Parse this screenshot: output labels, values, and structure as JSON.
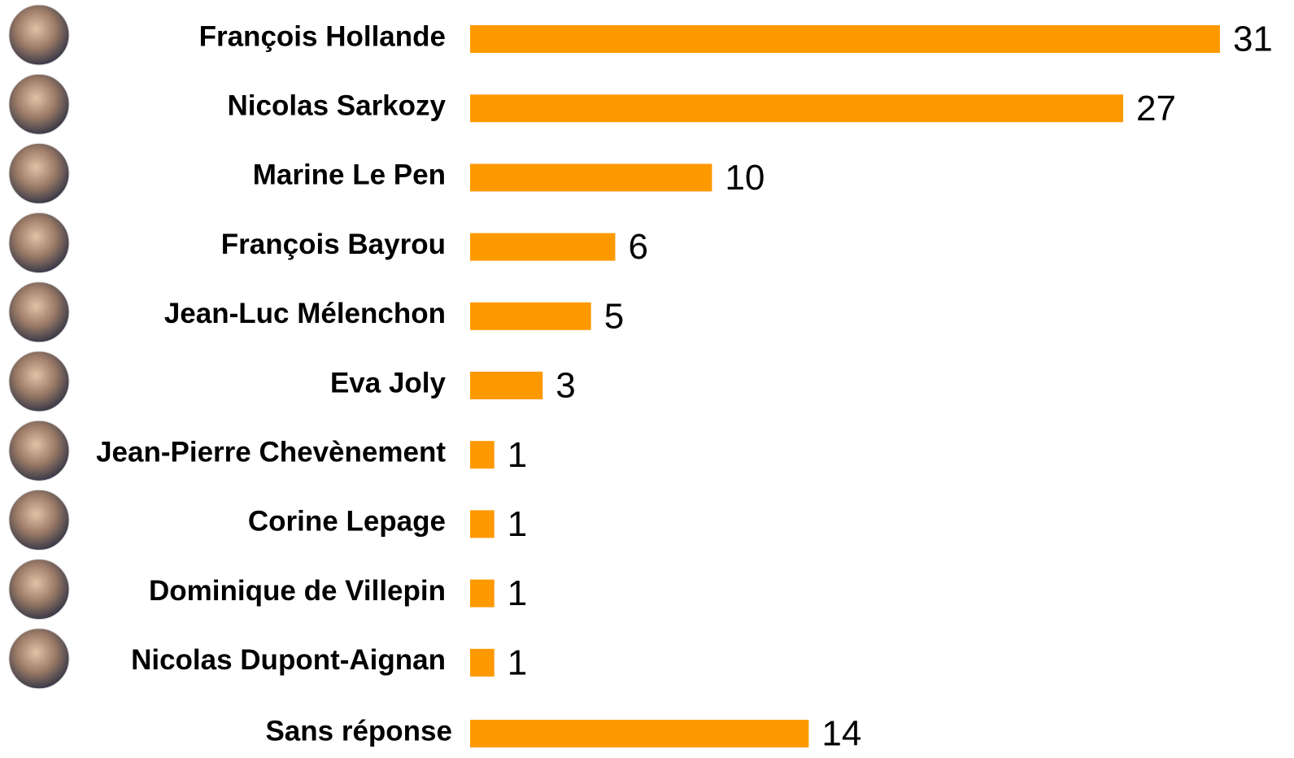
{
  "chart_data": {
    "type": "bar",
    "orientation": "horizontal",
    "color": "#ff9900",
    "categories": [
      "François Hollande",
      "Nicolas Sarkozy",
      "Marine Le Pen",
      "François Bayrou",
      "Jean-Luc Mélenchon",
      "Eva Joly",
      "Jean-Pierre Chevènement",
      "Corine Lepage",
      "Dominique de Villepin",
      "Nicolas Dupont-Aignan",
      "Sans réponse"
    ],
    "values": [
      31,
      27,
      10,
      6,
      5,
      3,
      1,
      1,
      1,
      1,
      14
    ]
  }
}
